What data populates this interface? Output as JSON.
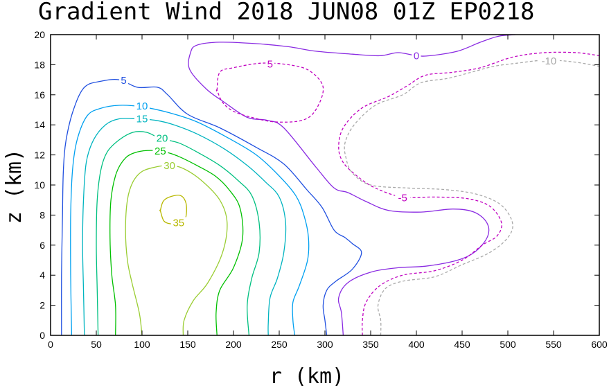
{
  "chart_data": {
    "type": "contour",
    "title": "Gradient Wind 2018 JUN08 01Z   EP0218",
    "xlabel": "r (km)",
    "ylabel": "z (km)",
    "xlim": [
      0,
      600
    ],
    "ylim": [
      0,
      20
    ],
    "xticks": [
      "0",
      "50",
      "100",
      "150",
      "200",
      "250",
      "300",
      "350",
      "400",
      "450",
      "500",
      "550",
      "600"
    ],
    "yticks": [
      "0",
      "2",
      "4",
      "6",
      "8",
      "10",
      "12",
      "14",
      "16",
      "18",
      "20"
    ],
    "grid": false,
    "contours": [
      {
        "level": "35",
        "color": "#b8b800",
        "dashed": false,
        "closed": true,
        "points": [
          [
            120,
            8.3
          ],
          [
            123,
            8.9
          ],
          [
            130,
            9.2
          ],
          [
            142,
            9.3
          ],
          [
            148,
            8.8
          ],
          [
            148,
            7.9
          ],
          [
            143,
            7.4
          ],
          [
            133,
            7.4
          ],
          [
            124,
            7.6
          ],
          [
            120,
            8.3
          ]
        ],
        "label_pos": [
          140,
          7.5
        ]
      },
      {
        "level": "30",
        "color": "#9acd32",
        "dashed": false,
        "closed": false,
        "points": [
          [
            100,
            0
          ],
          [
            97,
            1.5
          ],
          [
            89,
            3.5
          ],
          [
            84,
            5
          ],
          [
            82,
            7
          ],
          [
            84,
            9
          ],
          [
            90,
            10.2
          ],
          [
            100,
            10.9
          ],
          [
            115,
            11.2
          ],
          [
            130,
            11.3
          ],
          [
            145,
            11.1
          ],
          [
            165,
            10.3
          ],
          [
            185,
            9
          ],
          [
            193,
            7.5
          ],
          [
            188,
            5.5
          ],
          [
            172,
            3.5
          ],
          [
            156,
            2.3
          ],
          [
            146,
            1
          ],
          [
            145,
            0
          ]
        ],
        "label_pos": [
          130,
          11.3
        ]
      },
      {
        "level": "25",
        "color": "#00c000",
        "dashed": false,
        "closed": false,
        "points": [
          [
            71,
            0
          ],
          [
            71,
            2
          ],
          [
            67,
            4
          ],
          [
            65,
            6.5
          ],
          [
            66,
            9
          ],
          [
            72,
            10.8
          ],
          [
            82,
            11.8
          ],
          [
            95,
            12.2
          ],
          [
            110,
            12.3
          ],
          [
            125,
            12.2
          ],
          [
            140,
            11.9
          ],
          [
            160,
            11.3
          ],
          [
            180,
            10.6
          ],
          [
            195,
            9.7
          ],
          [
            207,
            8.5
          ],
          [
            210,
            6.5
          ],
          [
            200,
            4.5
          ],
          [
            185,
            3
          ],
          [
            181,
            1.5
          ],
          [
            182,
            0
          ]
        ],
        "label_pos": [
          120,
          12.25
        ]
      },
      {
        "level": "20",
        "color": "#00c080",
        "dashed": false,
        "closed": false,
        "points": [
          [
            52,
            0
          ],
          [
            51,
            3
          ],
          [
            50,
            6
          ],
          [
            51,
            9
          ],
          [
            55,
            11
          ],
          [
            62,
            12.2
          ],
          [
            75,
            13
          ],
          [
            90,
            13.5
          ],
          [
            105,
            13.5
          ],
          [
            120,
            13.1
          ],
          [
            140,
            12.8
          ],
          [
            160,
            12.2
          ],
          [
            185,
            11.3
          ],
          [
            205,
            10.3
          ],
          [
            220,
            9.3
          ],
          [
            228,
            7.5
          ],
          [
            228,
            5.5
          ],
          [
            220,
            3.8
          ],
          [
            215,
            2
          ],
          [
            217,
            0
          ]
        ],
        "label_pos": [
          122,
          13.1
        ]
      },
      {
        "level": "15",
        "color": "#00b4c0",
        "dashed": false,
        "closed": false,
        "points": [
          [
            37,
            0
          ],
          [
            36,
            3
          ],
          [
            35,
            6
          ],
          [
            36,
            9
          ],
          [
            39,
            11.5
          ],
          [
            47,
            13
          ],
          [
            60,
            14
          ],
          [
            75,
            14.4
          ],
          [
            95,
            14.4
          ],
          [
            115,
            14.3
          ],
          [
            135,
            14
          ],
          [
            160,
            13.4
          ],
          [
            190,
            12.4
          ],
          [
            215,
            11.3
          ],
          [
            235,
            10.2
          ],
          [
            250,
            9.2
          ],
          [
            257,
            7.5
          ],
          [
            255,
            5.5
          ],
          [
            248,
            3.8
          ],
          [
            240,
            2.5
          ],
          [
            238,
            0.8
          ],
          [
            238,
            0
          ]
        ],
        "label_pos": [
          100,
          14.4
        ]
      },
      {
        "level": "10",
        "color": "#00a0f0",
        "dashed": false,
        "closed": false,
        "points": [
          [
            23,
            0
          ],
          [
            22,
            4
          ],
          [
            22,
            8
          ],
          [
            24,
            11
          ],
          [
            29,
            13
          ],
          [
            40,
            14.6
          ],
          [
            55,
            15.1
          ],
          [
            75,
            15.3
          ],
          [
            100,
            15.2
          ],
          [
            130,
            14.8
          ],
          [
            160,
            14.2
          ],
          [
            195,
            13.1
          ],
          [
            225,
            12
          ],
          [
            250,
            10.6
          ],
          [
            268,
            9.3
          ],
          [
            277,
            8
          ],
          [
            282,
            6.5
          ],
          [
            281,
            5
          ],
          [
            272,
            3.3
          ],
          [
            265,
            2.2
          ],
          [
            265,
            1
          ],
          [
            267,
            0
          ]
        ],
        "label_pos": [
          100,
          15.25
        ]
      },
      {
        "level": "5",
        "color": "#2050e0",
        "dashed": false,
        "closed": false,
        "points": [
          [
            12,
            0
          ],
          [
            12,
            4
          ],
          [
            13,
            8
          ],
          [
            14,
            11
          ],
          [
            17,
            13
          ],
          [
            25,
            15
          ],
          [
            37,
            16.5
          ],
          [
            55,
            16.9
          ],
          [
            75,
            17
          ],
          [
            95,
            16.5
          ],
          [
            117,
            16.5
          ],
          [
            128,
            16
          ],
          [
            150,
            14.7
          ],
          [
            185,
            13.8
          ],
          [
            225,
            12.5
          ],
          [
            255,
            11.4
          ],
          [
            280,
            9.7
          ],
          [
            297,
            8.5
          ],
          [
            310,
            7
          ],
          [
            322,
            6.5
          ],
          [
            330,
            6.1
          ],
          [
            340,
            5.5
          ],
          [
            330,
            4.4
          ],
          [
            312,
            3.6
          ],
          [
            302,
            3
          ],
          [
            298,
            2
          ],
          [
            300,
            1
          ],
          [
            302,
            0
          ]
        ],
        "label_pos": [
          80,
          16.95
        ]
      },
      {
        "level": "0",
        "color": "#8a2be2",
        "dashed": false,
        "closed": false,
        "points": [
          [
            320,
            0
          ],
          [
            318,
            1.5
          ],
          [
            315,
            2.5
          ],
          [
            325,
            3.5
          ],
          [
            350,
            4.2
          ],
          [
            380,
            4.5
          ],
          [
            410,
            4.6
          ],
          [
            445,
            5
          ],
          [
            465,
            5.6
          ],
          [
            478,
            6.6
          ],
          [
            477,
            7.5
          ],
          [
            463,
            8.2
          ],
          [
            440,
            8.4
          ],
          [
            405,
            8.2
          ],
          [
            370,
            8.3
          ],
          [
            345,
            8.9
          ],
          [
            325,
            9.5
          ],
          [
            310,
            9.8
          ],
          [
            290,
            11.2
          ],
          [
            255,
            13.8
          ],
          [
            237,
            14.3
          ],
          [
            215,
            14.5
          ],
          [
            190,
            15.5
          ],
          [
            170,
            16.4
          ],
          [
            152,
            17.7
          ],
          [
            153,
            18.8
          ],
          [
            160,
            19.3
          ],
          [
            185,
            19.5
          ],
          [
            225,
            19.4
          ],
          [
            260,
            19.2
          ],
          [
            290,
            18.9
          ],
          [
            330,
            18.7
          ],
          [
            360,
            18.6
          ],
          [
            380,
            18.8
          ],
          [
            400,
            18.6
          ],
          [
            415,
            18.6
          ],
          [
            445,
            18.9
          ],
          [
            470,
            19.5
          ],
          [
            490,
            19.9
          ],
          [
            508,
            20
          ]
        ],
        "label_pos": [
          400,
          18.6
        ]
      },
      {
        "level": "5",
        "color": "#c000c0",
        "dashed": true,
        "closed": true,
        "points": [
          [
            182,
            16.3
          ],
          [
            185,
            17.5
          ],
          [
            200,
            17.8
          ],
          [
            230,
            18.1
          ],
          [
            260,
            18
          ],
          [
            283,
            17.6
          ],
          [
            298,
            16.5
          ],
          [
            290,
            15
          ],
          [
            275,
            14.3
          ],
          [
            245,
            14.2
          ],
          [
            220,
            14.5
          ],
          [
            200,
            14.9
          ],
          [
            188,
            15.5
          ],
          [
            182,
            16.3
          ]
        ],
        "label_pos": [
          240,
          18.05
        ]
      },
      {
        "level": "-5",
        "color": "#c000c0",
        "dashed": true,
        "closed": false,
        "points": [
          [
            341,
            0
          ],
          [
            341,
            1
          ],
          [
            345,
            2.2
          ],
          [
            360,
            3.3
          ],
          [
            385,
            4
          ],
          [
            420,
            4.3
          ],
          [
            450,
            5
          ],
          [
            472,
            6
          ],
          [
            488,
            6.6
          ],
          [
            493,
            7.5
          ],
          [
            480,
            8.6
          ],
          [
            455,
            9.1
          ],
          [
            420,
            9.2
          ],
          [
            385,
            9.2
          ],
          [
            355,
            9.8
          ],
          [
            335,
            10.6
          ],
          [
            320,
            11.5
          ],
          [
            315,
            12.5
          ],
          [
            320,
            13.8
          ],
          [
            340,
            15.1
          ],
          [
            370,
            15.9
          ],
          [
            390,
            16.6
          ],
          [
            410,
            17.3
          ],
          [
            440,
            17.5
          ],
          [
            470,
            17.8
          ],
          [
            505,
            18.5
          ],
          [
            540,
            18.8
          ],
          [
            575,
            18.8
          ],
          [
            600,
            18.6
          ]
        ],
        "label_pos": [
          385,
          9.15
        ]
      },
      {
        "level": "-10",
        "color": "#a9a9a9",
        "dashed": true,
        "closed": false,
        "points": [
          [
            361,
            0
          ],
          [
            361,
            1
          ],
          [
            358,
            2
          ],
          [
            366,
            3.1
          ],
          [
            385,
            3.6
          ],
          [
            420,
            3.9
          ],
          [
            450,
            4.7
          ],
          [
            480,
            5.5
          ],
          [
            500,
            6.5
          ],
          [
            505,
            7.5
          ],
          [
            492,
            8.7
          ],
          [
            465,
            9.4
          ],
          [
            430,
            9.7
          ],
          [
            390,
            9.8
          ],
          [
            350,
            10
          ],
          [
            330,
            10.8
          ],
          [
            323,
            11.8
          ],
          [
            322,
            12.8
          ],
          [
            332,
            14
          ],
          [
            355,
            15.3
          ],
          [
            385,
            16
          ],
          [
            405,
            16.8
          ],
          [
            435,
            17.1
          ],
          [
            460,
            17.5
          ],
          [
            485,
            17.9
          ],
          [
            510,
            18.1
          ],
          [
            540,
            18.3
          ],
          [
            570,
            18.2
          ],
          [
            600,
            17.9
          ]
        ],
        "label_pos": [
          545,
          18.25
        ]
      }
    ]
  }
}
